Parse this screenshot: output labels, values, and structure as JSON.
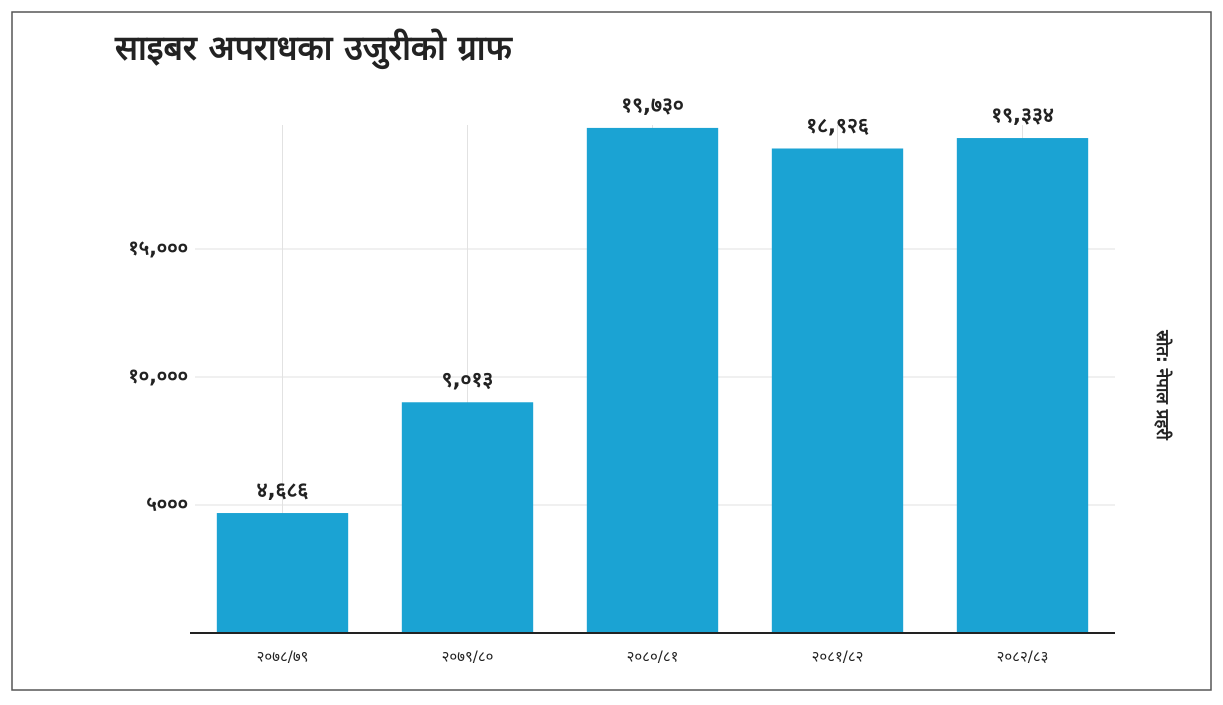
{
  "chart_data": {
    "type": "bar",
    "title": "साइबर अपराधका उजुरीको ग्राफ",
    "source": "स्रोत: नेपाल प्रहरी",
    "categories": [
      "२०७८/७९",
      "२०७९/८०",
      "२०८०/८१",
      "२०८१/८२",
      "२०८२/८३"
    ],
    "values": [
      4686,
      9013,
      19730,
      18926,
      19334
    ],
    "value_labels": [
      "४,६८६",
      "९,०१३",
      "१९,७३०",
      "१८,९२६",
      "१९,३३४"
    ],
    "color": "#1ba3d3",
    "ylim": [
      0,
      20000
    ],
    "yticks": [
      {
        "value": 5000,
        "label": "५०००"
      },
      {
        "value": 10000,
        "label": "१०,०००"
      },
      {
        "value": 15000,
        "label": "१५,०००"
      }
    ],
    "grid": true
  }
}
